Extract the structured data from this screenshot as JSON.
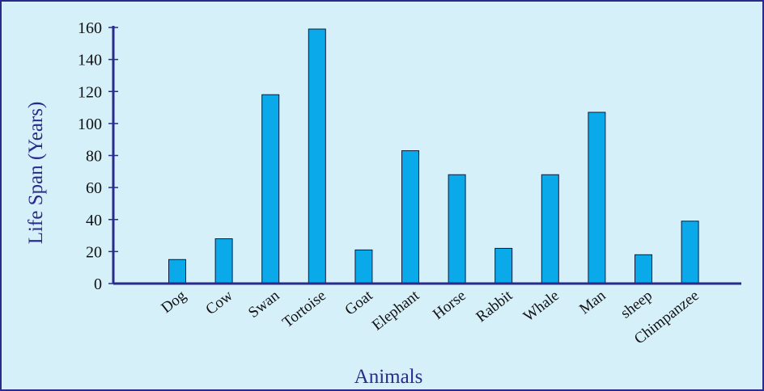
{
  "chart_data": {
    "type": "bar",
    "title": "",
    "xlabel": "Animals",
    "ylabel": "Life Span (Years)",
    "ylim": [
      0,
      160
    ],
    "yticks": [
      0,
      20,
      40,
      60,
      80,
      100,
      120,
      140,
      160
    ],
    "categories": [
      "Dog",
      "Cow",
      "Swan",
      "Tortoise",
      "Goat",
      "Elephant",
      "Horse",
      "Rabbit",
      "Whale",
      "Man",
      "sheep",
      "Chimpanzee"
    ],
    "values": [
      15,
      28,
      118,
      159,
      21,
      83,
      68,
      22,
      68,
      107,
      18,
      39
    ],
    "grid": false,
    "colors": {
      "bar": "#0aa9ea",
      "bar_edge": "#0f1a3c",
      "axis": "#2a2a8c",
      "background": "#d6f0fa"
    }
  }
}
